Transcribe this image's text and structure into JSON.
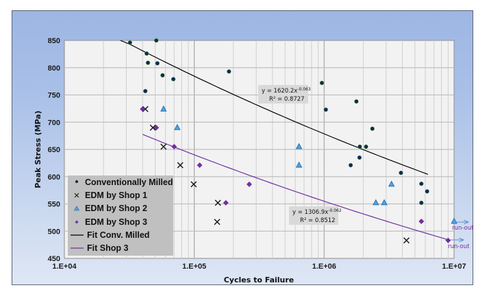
{
  "chart_data": {
    "type": "scatter",
    "title": "",
    "xlabel": "Cycles to Failure",
    "ylabel": "Peak Stress  (MPa)",
    "xscale": "log",
    "xlim": [
      10000,
      10000000
    ],
    "ylim": [
      450,
      850
    ],
    "x_ticks": [
      "1.E+04",
      "1.E+05",
      "1.E+06",
      "1.E+07"
    ],
    "y_ticks": [
      "850",
      "800",
      "750",
      "700",
      "650",
      "600",
      "550",
      "500",
      "450"
    ],
    "grid": true,
    "legend_position": "lower-left inside",
    "series": [
      {
        "name": "Conventionally Milled",
        "marker": "circle",
        "color": "#0a2a5c",
        "points": [
          [
            32000,
            846
          ],
          [
            43000,
            826
          ],
          [
            44000,
            809
          ],
          [
            42000,
            757
          ],
          [
            51000,
            850
          ],
          [
            52000,
            808
          ],
          [
            57000,
            786
          ],
          [
            69000,
            779
          ],
          [
            185000,
            793
          ],
          [
            960000,
            772
          ],
          [
            1030000,
            723
          ],
          [
            1770000,
            738
          ],
          [
            2350000,
            688
          ],
          [
            1880000,
            655
          ],
          [
            2100000,
            655
          ],
          [
            1870000,
            635
          ],
          [
            1600000,
            621
          ],
          [
            3900000,
            607
          ],
          [
            5600000,
            587
          ],
          [
            6200000,
            573
          ],
          [
            5600000,
            552
          ]
        ]
      },
      {
        "name": "EDM by Shop 1",
        "marker": "x",
        "color": "#111111",
        "points": [
          [
            42000,
            724
          ],
          [
            48000,
            690
          ],
          [
            58000,
            655
          ],
          [
            78000,
            621
          ],
          [
            99000,
            586
          ],
          [
            152000,
            552
          ],
          [
            150000,
            517
          ],
          [
            4300000,
            483
          ]
        ]
      },
      {
        "name": "EDM by Shop 2",
        "marker": "triangle",
        "color": "#4da6e0",
        "points": [
          [
            58000,
            724
          ],
          [
            74000,
            690
          ],
          [
            640000,
            655
          ],
          [
            640000,
            621
          ],
          [
            3300000,
            586
          ],
          [
            2500000,
            552
          ],
          [
            2900000,
            552
          ],
          [
            10000000,
            518
          ]
        ]
      },
      {
        "name": "EDM by Shop 3",
        "marker": "diamond",
        "color": "#7030a0",
        "points": [
          [
            40000,
            724
          ],
          [
            51000,
            690
          ],
          [
            70000,
            655
          ],
          [
            110000,
            621
          ],
          [
            175000,
            552
          ],
          [
            265000,
            586
          ],
          [
            5600000,
            518
          ],
          [
            9000000,
            483
          ]
        ]
      },
      {
        "name": "Fit Conv. Milled",
        "type": "line",
        "color": "#000000",
        "equation": "y = 1620.2x^-0.063",
        "r2": 0.8727,
        "x_range": [
          32000,
          6300000
        ]
      },
      {
        "name": "Fit Shop 3",
        "type": "line",
        "color": "#7030a0",
        "equation": "y = 1306.9x^-0.062",
        "r2": 0.8512,
        "x_range": [
          40000,
          9000000
        ]
      }
    ],
    "annotations": [
      {
        "text": "y = 1620.2x",
        "sup": "-0.063",
        "r2_text": "R² = 0.8727"
      },
      {
        "text": "y = 1306.9x",
        "sup": "-0.062",
        "r2_text": "R² = 0.8512"
      },
      {
        "text": "run-out",
        "at": [
          10000000,
          518
        ]
      },
      {
        "text": "run-out",
        "at": [
          9000000,
          483
        ]
      }
    ]
  },
  "labels": {
    "xlabel": "Cycles to Failure",
    "ylabel": "Peak Stress  (MPa)",
    "eq1_main": "y = 1620.2x",
    "eq1_sup": "-0.063",
    "eq1_r2": "R² = 0.8727",
    "eq2_main": "y = 1306.9x",
    "eq2_sup": "-0.062",
    "eq2_r2": "R² = 0.8512",
    "runout1": "run-out",
    "runout2": "run-out"
  },
  "legend": {
    "items": [
      {
        "label": "Conventionally Milled"
      },
      {
        "label": "EDM by Shop 1"
      },
      {
        "label": "EDM by Shop 2"
      },
      {
        "label": "EDM by Shop 3"
      },
      {
        "label": "Fit Conv. Milled"
      },
      {
        "label": "Fit Shop 3"
      }
    ]
  }
}
